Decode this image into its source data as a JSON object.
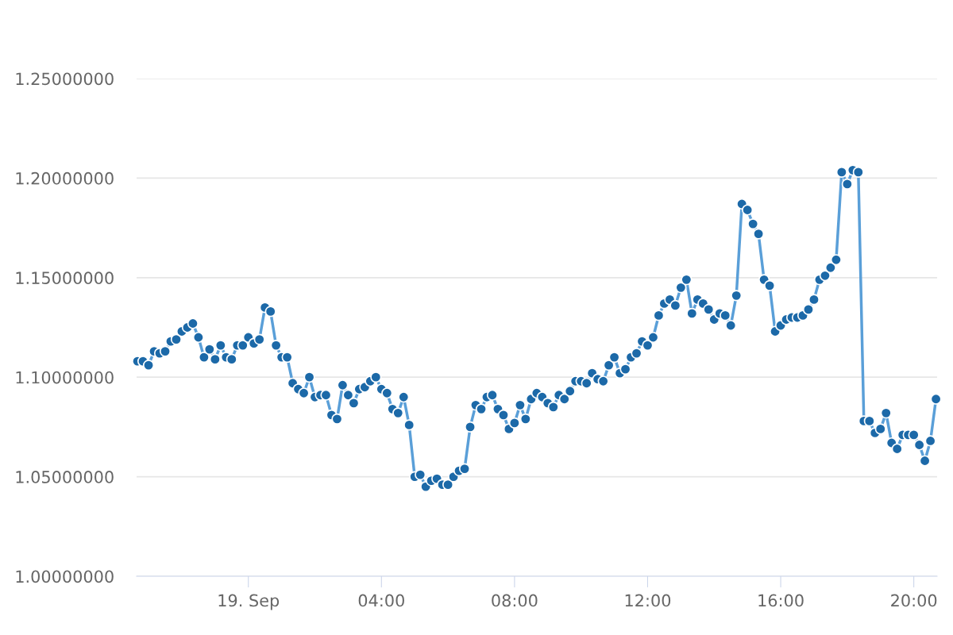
{
  "chart_data": {
    "type": "line",
    "x": [
      -3.333,
      -3.167,
      -3,
      -2.833,
      -2.667,
      -2.5,
      -2.333,
      -2.167,
      -2,
      -1.833,
      -1.667,
      -1.5,
      -1.333,
      -1.167,
      -1,
      -0.833,
      -0.667,
      -0.5,
      -0.333,
      -0.167,
      0,
      0.167,
      0.333,
      0.5,
      0.667,
      0.833,
      1,
      1.167,
      1.333,
      1.5,
      1.667,
      1.833,
      2,
      2.167,
      2.333,
      2.5,
      2.667,
      2.833,
      3,
      3.167,
      3.333,
      3.5,
      3.667,
      3.833,
      4,
      4.167,
      4.333,
      4.5,
      4.667,
      4.833,
      5,
      5.167,
      5.333,
      5.5,
      5.667,
      5.833,
      6,
      6.167,
      6.333,
      6.5,
      6.667,
      6.833,
      7,
      7.167,
      7.333,
      7.5,
      7.667,
      7.833,
      8,
      8.167,
      8.333,
      8.5,
      8.667,
      8.833,
      9,
      9.167,
      9.333,
      9.5,
      9.667,
      9.833,
      10,
      10.167,
      10.333,
      10.5,
      10.667,
      10.833,
      11,
      11.167,
      11.333,
      11.5,
      11.667,
      11.833,
      12,
      12.167,
      12.333,
      12.5,
      12.667,
      12.833,
      13,
      13.167,
      13.333,
      13.5,
      13.667,
      13.833,
      14,
      14.167,
      14.333,
      14.5,
      14.667,
      14.833,
      15,
      15.167,
      15.333,
      15.5,
      15.667,
      15.833,
      16,
      16.167,
      16.333,
      16.5,
      16.667,
      16.833,
      17,
      17.167,
      17.333,
      17.5,
      17.667,
      17.833,
      18,
      18.167,
      18.333,
      18.5,
      18.667,
      18.833,
      19,
      19.167,
      19.333,
      19.5,
      19.667,
      19.833,
      20,
      20.167,
      20.333,
      20.5,
      20.667
    ],
    "series": [
      {
        "color": "#1c69a8",
        "values": [
          1.108,
          1.108,
          1.106,
          1.113,
          1.112,
          1.113,
          1.118,
          1.119,
          1.123,
          1.125,
          1.127,
          1.12,
          1.11,
          1.114,
          1.109,
          1.116,
          1.11,
          1.109,
          1.116,
          1.116,
          1.12,
          1.117,
          1.119,
          1.135,
          1.133,
          1.116,
          1.11,
          1.11,
          1.097,
          1.094,
          1.092,
          1.1,
          1.09,
          1.091,
          1.091,
          1.081,
          1.079,
          1.096,
          1.091,
          1.087,
          1.094,
          1.095,
          1.098,
          1.1,
          1.094,
          1.092,
          1.084,
          1.082,
          1.09,
          1.076,
          1.05,
          1.051,
          1.045,
          1.048,
          1.049,
          1.046,
          1.046,
          1.05,
          1.053,
          1.054,
          1.075,
          1.086,
          1.084,
          1.09,
          1.091,
          1.084,
          1.081,
          1.074,
          1.077,
          1.086,
          1.079,
          1.089,
          1.092,
          1.09,
          1.087,
          1.085,
          1.091,
          1.089,
          1.093,
          1.098,
          1.098,
          1.097,
          1.102,
          1.099,
          1.098,
          1.106,
          1.11,
          1.102,
          1.104,
          1.11,
          1.112,
          1.118,
          1.116,
          1.12,
          1.131,
          1.137,
          1.139,
          1.136,
          1.145,
          1.149,
          1.132,
          1.139,
          1.137,
          1.134,
          1.129,
          1.132,
          1.131,
          1.126,
          1.141,
          1.187,
          1.184,
          1.177,
          1.172,
          1.149,
          1.146,
          1.123,
          1.126,
          1.129,
          1.13,
          1.13,
          1.131,
          1.134,
          1.139,
          1.149,
          1.151,
          1.155,
          1.159,
          1.203,
          1.197,
          1.204,
          1.203,
          1.078,
          1.078,
          1.072,
          1.074,
          1.082,
          1.067,
          1.064,
          1.071,
          1.071,
          1.071,
          1.066,
          1.058,
          1.068,
          1.089
        ]
      }
    ],
    "xlim": [
      -3.36,
      20.7
    ],
    "xticks": [
      {
        "value": 0,
        "label": "19. Sep"
      },
      {
        "value": 4,
        "label": "04:00"
      },
      {
        "value": 8,
        "label": "08:00"
      },
      {
        "value": 12,
        "label": "12:00"
      },
      {
        "value": 16,
        "label": "16:00"
      },
      {
        "value": 20,
        "label": "20:00"
      }
    ],
    "ylim": [
      1.0,
      1.25
    ],
    "yticks": [
      {
        "value": 1.0,
        "label": "1.00000000"
      },
      {
        "value": 1.05,
        "label": "1.05000000"
      },
      {
        "value": 1.1,
        "label": "1.10000000"
      },
      {
        "value": 1.15,
        "label": "1.15000000"
      },
      {
        "value": 1.2,
        "label": "1.20000000"
      },
      {
        "value": 1.25,
        "label": "1.25000000"
      }
    ],
    "grid": "y",
    "marker": "circle",
    "line_style": "solid"
  }
}
